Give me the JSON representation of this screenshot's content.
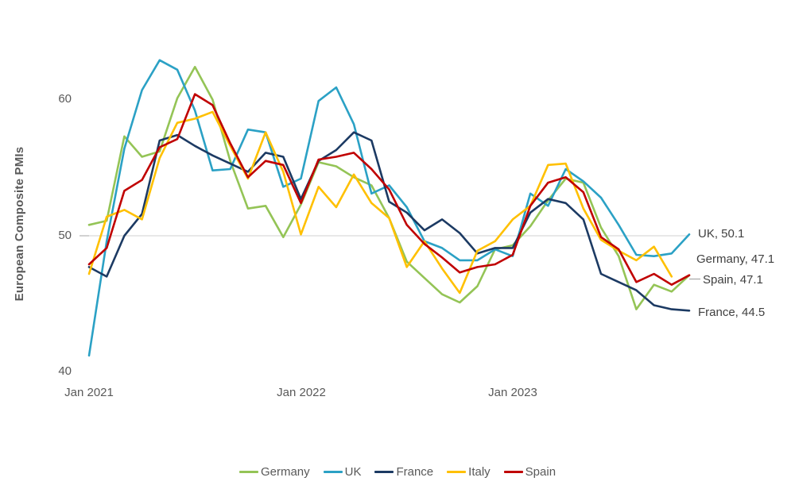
{
  "chart_data": {
    "type": "line",
    "title": "",
    "ylabel": "European Composite PMIs",
    "xlabel": "",
    "frequency": "monthly",
    "x_start": "Jan 2021",
    "x_end": "Nov 2023",
    "ylim": [
      40,
      64
    ],
    "grid": "single horizontal gridline at 50",
    "y_axis": {
      "ticks": [
        60,
        50,
        40
      ],
      "gridline_value": 50
    },
    "x_axis": {
      "ticks": [
        "Jan 2021",
        "Jan 2022",
        "Jan 2023"
      ]
    },
    "legend_position": "bottom",
    "series": [
      {
        "name": "Germany",
        "color": "#94C456",
        "values": [
          50.8,
          51.1,
          57.3,
          55.8,
          56.2,
          60.1,
          62.4,
          60.0,
          55.5,
          52.0,
          52.2,
          49.9,
          52.3,
          55.4,
          55.1,
          54.3,
          53.7,
          51.3,
          48.1,
          46.9,
          45.7,
          45.1,
          46.3,
          49.0,
          49.3,
          50.7,
          52.6,
          54.2,
          53.9,
          50.6,
          48.5,
          44.6,
          46.4,
          45.9,
          47.1
        ]
      },
      {
        "name": "UK",
        "color": "#2BA1C5",
        "values": [
          41.2,
          49.6,
          56.4,
          60.7,
          62.9,
          62.2,
          59.2,
          54.8,
          54.9,
          57.8,
          57.6,
          53.6,
          54.2,
          59.9,
          60.9,
          58.2,
          53.1,
          53.7,
          52.1,
          49.6,
          49.1,
          48.2,
          48.2,
          49.0,
          48.5,
          53.1,
          52.2,
          54.9,
          54.0,
          52.8,
          50.8,
          48.6,
          48.5,
          48.7,
          50.1
        ]
      },
      {
        "name": "France",
        "color": "#1C3A63",
        "values": [
          47.7,
          47.0,
          50.0,
          51.6,
          57.0,
          57.4,
          56.6,
          55.9,
          55.3,
          54.7,
          56.1,
          55.8,
          52.7,
          55.5,
          56.3,
          57.6,
          57.0,
          52.5,
          51.7,
          50.4,
          51.2,
          50.2,
          48.7,
          49.1,
          49.1,
          51.7,
          52.7,
          52.4,
          51.2,
          47.2,
          46.6,
          46.0,
          44.9,
          44.6,
          44.5
        ]
      },
      {
        "name": "Italy",
        "color": "#FFC000",
        "values": [
          47.2,
          51.4,
          51.9,
          51.2,
          55.7,
          58.3,
          58.6,
          59.1,
          56.6,
          54.2,
          57.6,
          54.7,
          50.1,
          53.6,
          52.1,
          54.5,
          52.4,
          51.3,
          47.7,
          49.6,
          47.6,
          45.8,
          48.9,
          49.6,
          51.2,
          52.2,
          55.2,
          55.3,
          52.0,
          49.7,
          48.9,
          48.2,
          49.2,
          47.0
        ]
      },
      {
        "name": "Spain",
        "color": "#C00000",
        "values": [
          47.9,
          49.1,
          53.3,
          54.1,
          56.5,
          57.1,
          60.4,
          59.6,
          56.8,
          54.3,
          55.5,
          55.2,
          52.4,
          55.6,
          55.8,
          56.1,
          54.9,
          53.4,
          50.8,
          49.4,
          48.4,
          47.3,
          47.7,
          47.9,
          48.6,
          52.2,
          53.9,
          54.3,
          53.2,
          49.9,
          49.0,
          46.6,
          47.2,
          46.4,
          47.1
        ]
      }
    ],
    "end_labels": [
      {
        "series": "UK",
        "text": "UK, 50.1"
      },
      {
        "series": "Germany",
        "text": "Germany, 47.1"
      },
      {
        "series": "Spain",
        "text": "Spain, 47.1"
      },
      {
        "series": "France",
        "text": "France, 44.5"
      }
    ]
  }
}
